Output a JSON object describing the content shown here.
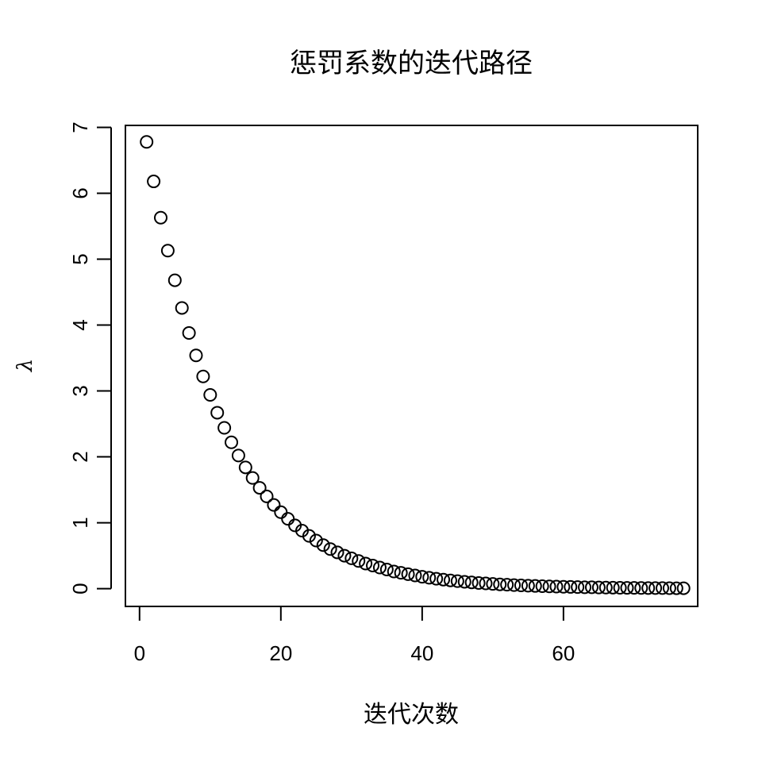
{
  "chart_data": {
    "type": "scatter",
    "title": "惩罚系数的迭代路径",
    "xlabel": "迭代次数",
    "ylabel": "λ",
    "xlim": [
      -2,
      79
    ],
    "ylim": [
      -0.27,
      7.03
    ],
    "x_ticks": [
      0,
      20,
      40,
      60
    ],
    "x_tick_labels": [
      "0",
      "20",
      "40",
      "60"
    ],
    "y_ticks": [
      0,
      1,
      2,
      3,
      4,
      5,
      6,
      7
    ],
    "y_tick_labels": [
      "0",
      "1",
      "2",
      "3",
      "4",
      "5",
      "6",
      "7"
    ],
    "grid": false,
    "legend": false,
    "marker": "open-circle",
    "marker_color": "#000000",
    "x": [
      1,
      2,
      3,
      4,
      5,
      6,
      7,
      8,
      9,
      10,
      11,
      12,
      13,
      14,
      15,
      16,
      17,
      18,
      19,
      20,
      21,
      22,
      23,
      24,
      25,
      26,
      27,
      28,
      29,
      30,
      31,
      32,
      33,
      34,
      35,
      36,
      37,
      38,
      39,
      40,
      41,
      42,
      43,
      44,
      45,
      46,
      47,
      48,
      49,
      50,
      51,
      52,
      53,
      54,
      55,
      56,
      57,
      58,
      59,
      60,
      61,
      62,
      63,
      64,
      65,
      66,
      67,
      68,
      69,
      70,
      71,
      72,
      73,
      74,
      75,
      76,
      77
    ],
    "y": [
      6.78,
      6.18,
      5.63,
      5.13,
      4.68,
      4.26,
      3.88,
      3.54,
      3.22,
      2.94,
      2.67,
      2.44,
      2.22,
      2.02,
      1.84,
      1.68,
      1.53,
      1.4,
      1.27,
      1.16,
      1.06,
      0.96,
      0.88,
      0.8,
      0.73,
      0.66,
      0.6,
      0.55,
      0.5,
      0.46,
      0.42,
      0.38,
      0.35,
      0.32,
      0.29,
      0.26,
      0.24,
      0.22,
      0.2,
      0.18,
      0.165,
      0.15,
      0.137,
      0.125,
      0.114,
      0.104,
      0.095,
      0.086,
      0.079,
      0.072,
      0.065,
      0.06,
      0.054,
      0.049,
      0.045,
      0.041,
      0.037,
      0.034,
      0.031,
      0.028,
      0.026,
      0.024,
      0.021,
      0.02,
      0.018,
      0.016,
      0.015,
      0.013,
      0.012,
      0.011,
      0.01,
      0.009,
      0.008,
      0.008,
      0.007,
      0.006,
      0.006
    ]
  }
}
